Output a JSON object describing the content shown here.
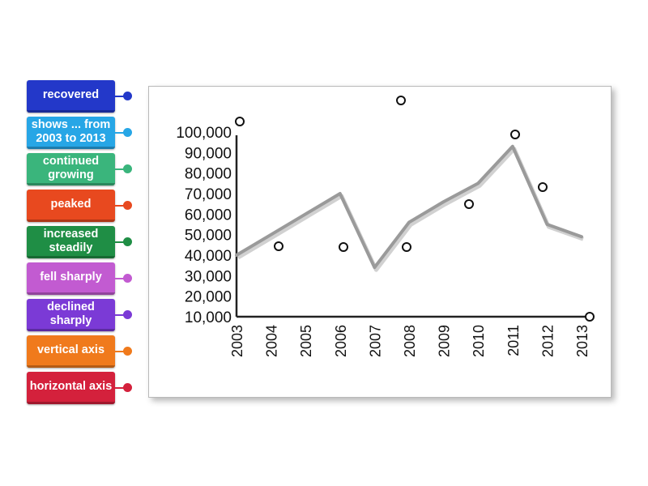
{
  "labels": [
    {
      "text": "recovered",
      "color": "#2338c9"
    },
    {
      "text": "shows ... from 2003 to 2013",
      "color": "#27a6e6"
    },
    {
      "text": "continued growing",
      "color": "#3ab57c"
    },
    {
      "text": "peaked",
      "color": "#e8491f"
    },
    {
      "text": "increased steadily",
      "color": "#1f8e45"
    },
    {
      "text": "fell sharply",
      "color": "#c25bd1"
    },
    {
      "text": "declined sharply",
      "color": "#7b3ad6"
    },
    {
      "text": "vertical axis",
      "color": "#f07a1c"
    },
    {
      "text": "horizontal axis",
      "color": "#d4213c"
    }
  ],
  "chart_data": {
    "type": "line",
    "x": [
      "2003",
      "2004",
      "2005",
      "2006",
      "2007",
      "2008",
      "2009",
      "2010",
      "2011",
      "2012",
      "2013"
    ],
    "y_ticks": [
      "10,000",
      "20,000",
      "30,000",
      "40,000",
      "50,000",
      "60,000",
      "70,000",
      "80,000",
      "90,000",
      "100,000"
    ],
    "series": [
      {
        "values": [
          40000,
          50000,
          60000,
          70000,
          34000,
          56000,
          66000,
          75000,
          93000,
          55000,
          49000
        ]
      }
    ],
    "ylim": [
      10000,
      100000
    ],
    "line_color": "#9a9a9a",
    "grid": false
  }
}
